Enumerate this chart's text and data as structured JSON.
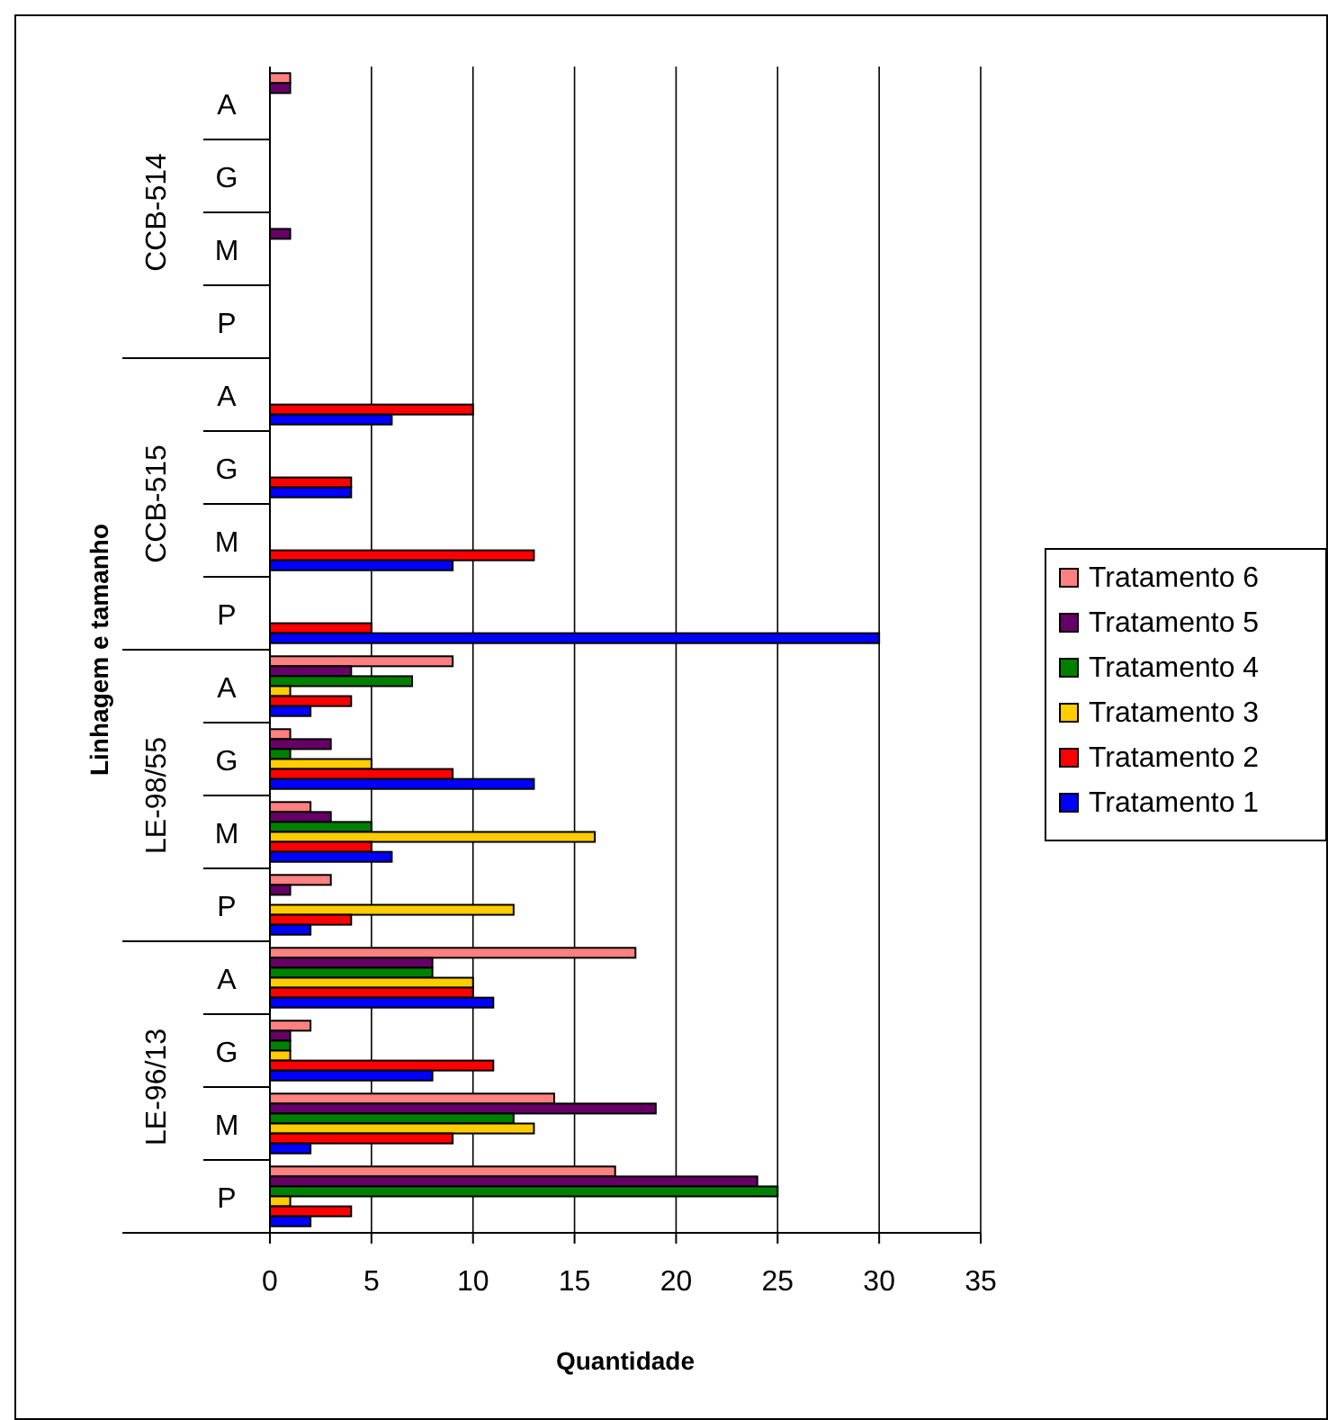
{
  "chart_data": {
    "type": "bar",
    "orientation": "horizontal",
    "xlabel": "Quantidade",
    "ylabel": "Linhagem e tamanho",
    "categories": [
      "A",
      "G",
      "M",
      "P",
      "A",
      "G",
      "M",
      "P",
      "A",
      "G",
      "M",
      "P",
      "A",
      "G",
      "M",
      "P"
    ],
    "annotations": [
      "CCB-514",
      "CCB-515",
      "LE-98/55",
      "LE-96/13"
    ],
    "series": [
      {
        "name": "Tratamento 6",
        "color": "#ff8080",
        "values": [
          1,
          0,
          0,
          0,
          0,
          0,
          0,
          0,
          9,
          1,
          2,
          3,
          18,
          2,
          14,
          17
        ]
      },
      {
        "name": "Tratamento 5",
        "color": "#660066",
        "values": [
          1,
          0,
          1,
          0,
          0,
          0,
          0,
          0,
          4,
          3,
          3,
          1,
          8,
          1,
          19,
          24
        ]
      },
      {
        "name": "Tratamento 4",
        "color": "#008000",
        "values": [
          0,
          0,
          0,
          0,
          0,
          0,
          0,
          0,
          7,
          1,
          5,
          0,
          8,
          1,
          12,
          25
        ]
      },
      {
        "name": "Tratamento 3",
        "color": "#ffcc00",
        "values": [
          0,
          0,
          0,
          0,
          0,
          0,
          0,
          0,
          1,
          5,
          16,
          12,
          10,
          1,
          13,
          1
        ]
      },
      {
        "name": "Tratamento 2",
        "color": "#ff0000",
        "values": [
          0,
          0,
          0,
          0,
          10,
          4,
          13,
          5,
          4,
          9,
          5,
          4,
          10,
          11,
          9,
          4
        ]
      },
      {
        "name": "Tratamento 1",
        "color": "#0000ff",
        "values": [
          0,
          0,
          0,
          0,
          6,
          4,
          9,
          30,
          2,
          13,
          6,
          2,
          11,
          8,
          2,
          2
        ]
      }
    ],
    "xlim": [
      0,
      35
    ],
    "xticks": [
      0,
      5,
      10,
      15,
      20,
      25,
      30,
      35
    ],
    "grid": "x",
    "legend": "right"
  }
}
